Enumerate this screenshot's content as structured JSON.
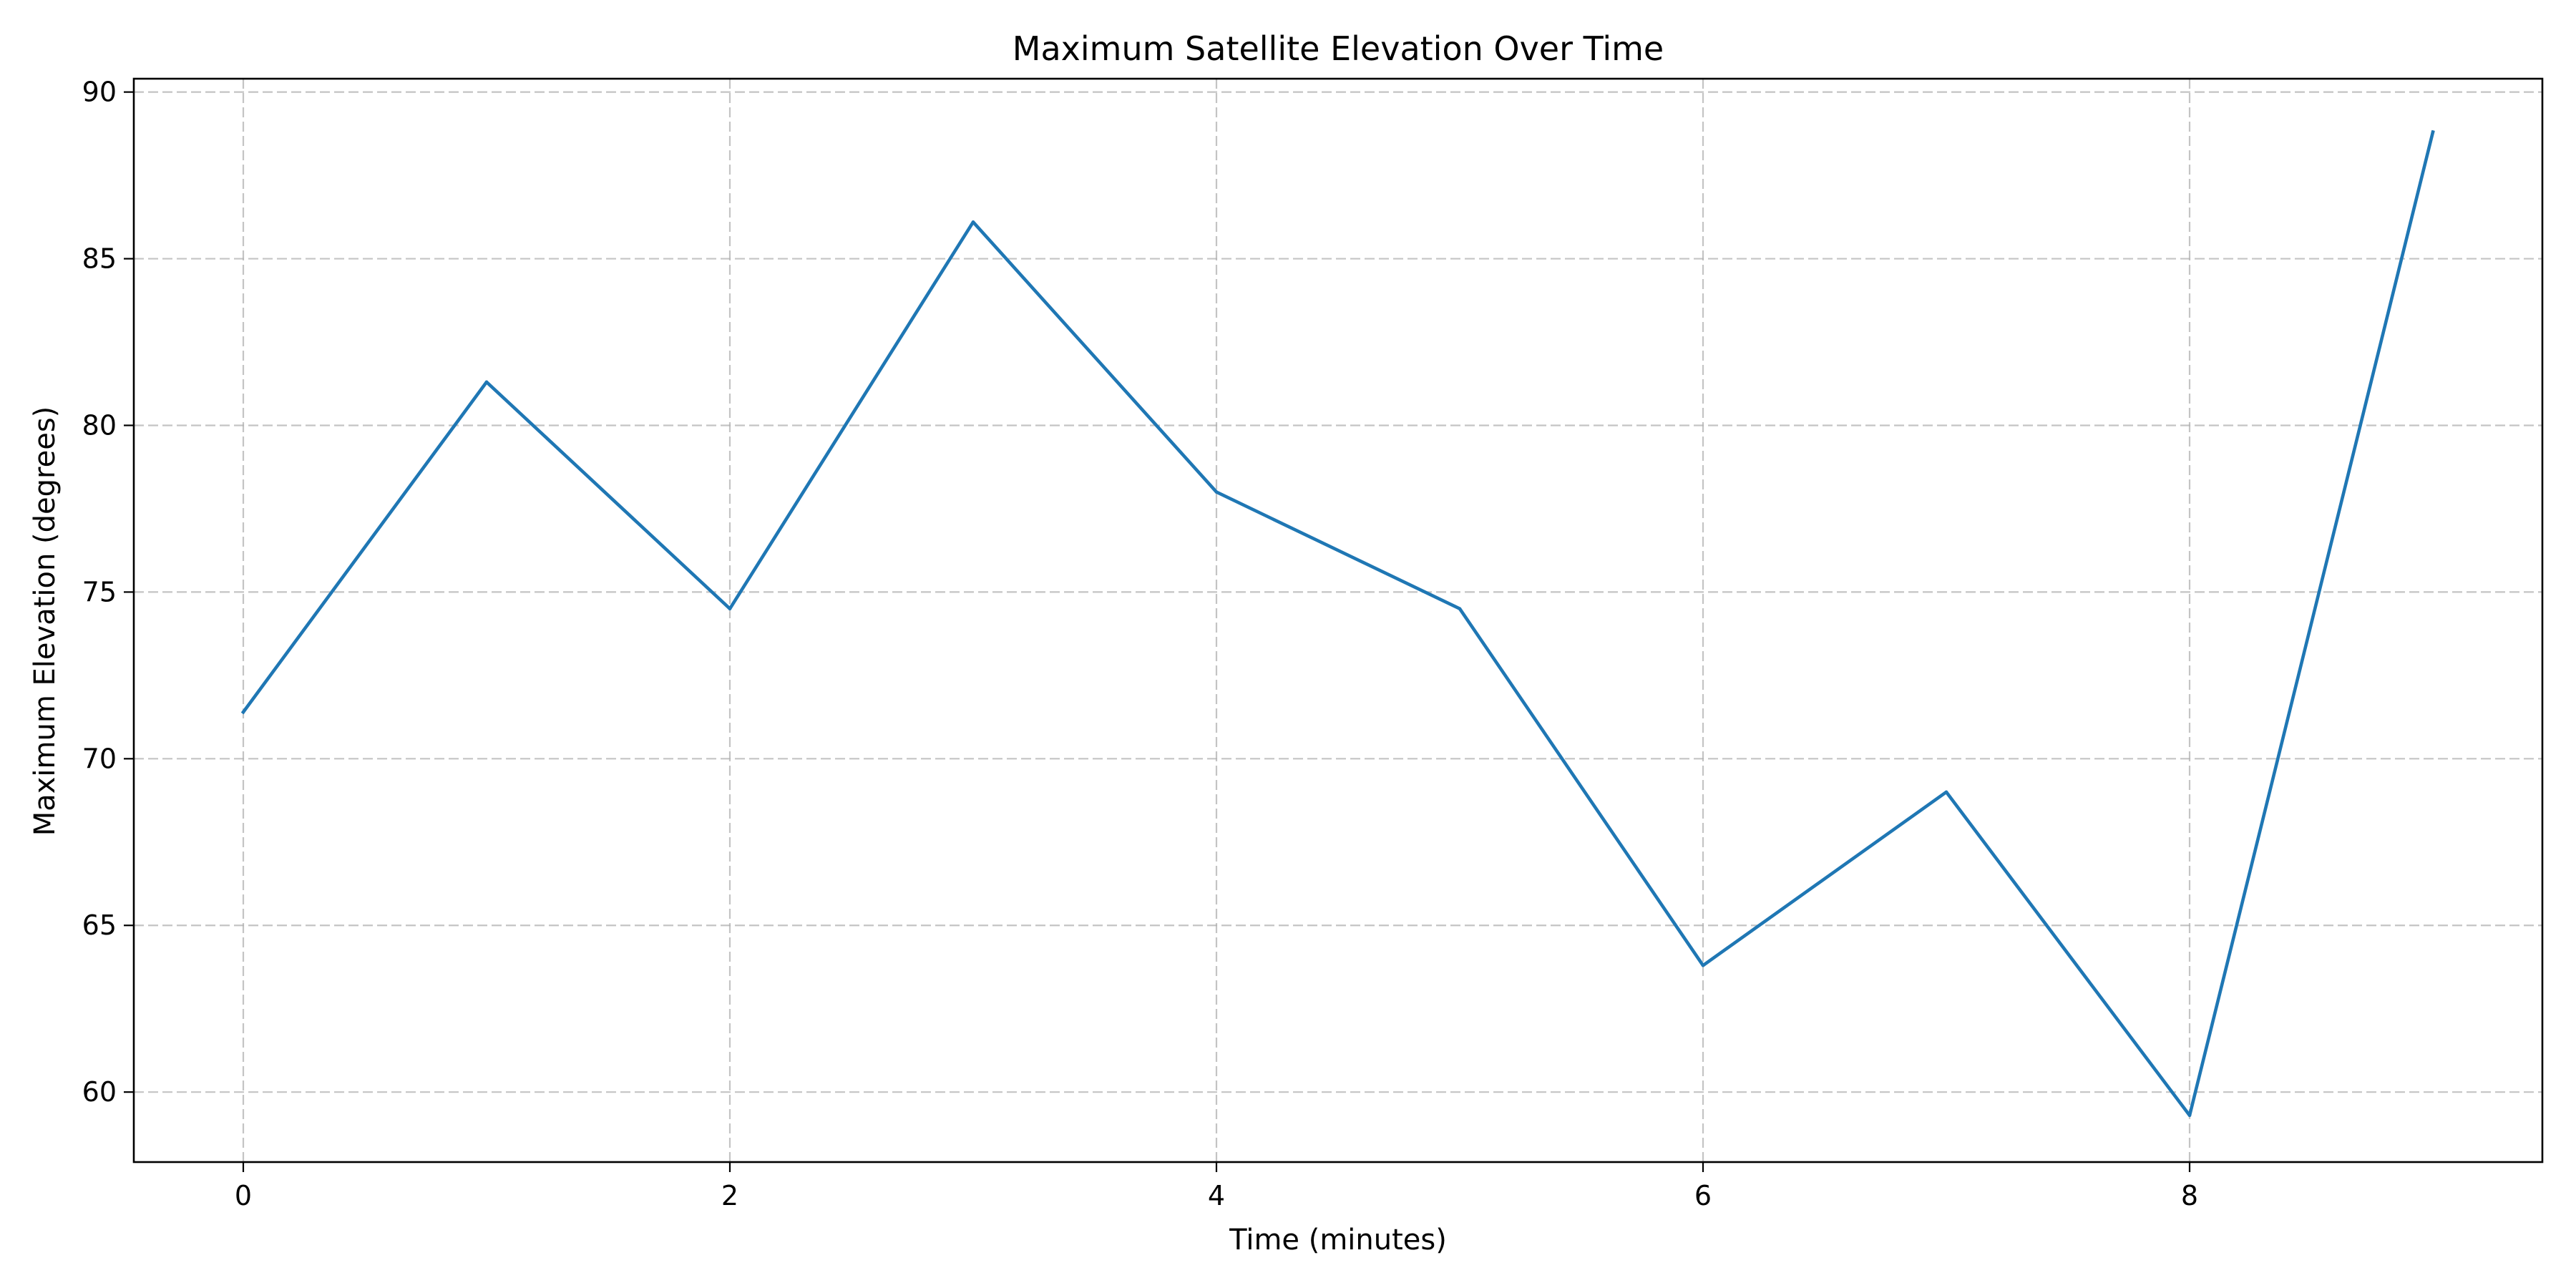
{
  "chart_data": {
    "type": "line",
    "title": "Maximum Satellite Elevation Over Time",
    "xlabel": "Time (minutes)",
    "ylabel": "Maximum Elevation (degrees)",
    "x": [
      0,
      1,
      2,
      3,
      4,
      5,
      6,
      7,
      8,
      9
    ],
    "series": [
      {
        "values": [
          71.4,
          81.3,
          74.5,
          86.1,
          78.0,
          74.5,
          63.8,
          69.0,
          59.3,
          88.8
        ],
        "color": "#1f77b4"
      }
    ],
    "xlim": [
      -0.45,
      9.45
    ],
    "ylim": [
      57.9,
      90.4
    ],
    "xticks": [
      0,
      2,
      4,
      6,
      8
    ],
    "yticks": [
      60,
      65,
      70,
      75,
      80,
      85,
      90
    ],
    "grid": true,
    "grid_style": "dashed"
  }
}
